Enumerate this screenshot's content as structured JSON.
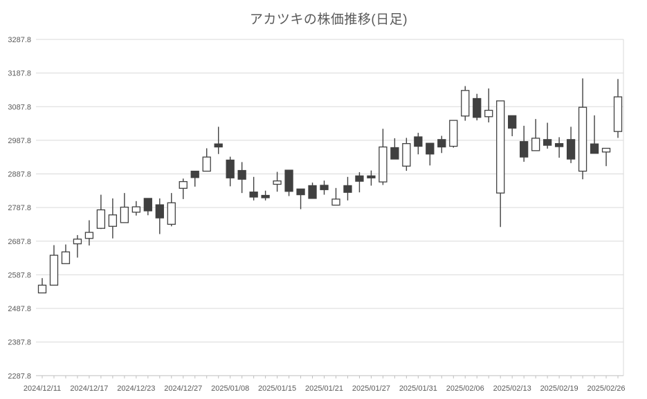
{
  "title": "アカツキの株価推移(日足)",
  "chart_data": {
    "type": "candlestick",
    "title": "アカツキの株価推移(日足)",
    "columns": [
      "date",
      "open",
      "high",
      "low",
      "close"
    ],
    "candles": [
      [
        "2024/12/11",
        2534,
        2578,
        2534,
        2557
      ],
      [
        "2024/12/12",
        2557,
        2676,
        2557,
        2646
      ],
      [
        "2024/12/13",
        2621,
        2678,
        2621,
        2656
      ],
      [
        "2024/12/16",
        2680,
        2706,
        2639,
        2694
      ],
      [
        "2024/12/17",
        2696,
        2750,
        2675,
        2714
      ],
      [
        "2024/12/18",
        2726,
        2826,
        2724,
        2781
      ],
      [
        "2024/12/19",
        2732,
        2815,
        2696,
        2766
      ],
      [
        "2024/12/20",
        2743,
        2831,
        2743,
        2789
      ],
      [
        "2024/12/23",
        2774,
        2807,
        2764,
        2790
      ],
      [
        "2024/12/24",
        2815,
        2815,
        2765,
        2778
      ],
      [
        "2024/12/25",
        2796,
        2815,
        2709,
        2757
      ],
      [
        "2024/12/26",
        2738,
        2831,
        2732,
        2802
      ],
      [
        "2024/12/27",
        2845,
        2874,
        2813,
        2865
      ],
      [
        "2024/12/30",
        2896,
        2896,
        2850,
        2877
      ],
      [
        "2025/01/06",
        2896,
        2964,
        2896,
        2938
      ],
      [
        "2025/01/07",
        2977,
        3028,
        2947,
        2968
      ],
      [
        "2025/01/08",
        2929,
        2939,
        2851,
        2876
      ],
      [
        "2025/01/09",
        2898,
        2923,
        2831,
        2872
      ],
      [
        "2025/01/10",
        2834,
        2879,
        2809,
        2819
      ],
      [
        "2025/01/14",
        2824,
        2838,
        2809,
        2817
      ],
      [
        "2025/01/15",
        2857,
        2894,
        2835,
        2867
      ],
      [
        "2025/01/16",
        2899,
        2899,
        2822,
        2836
      ],
      [
        "2025/01/17",
        2843,
        2843,
        2783,
        2826
      ],
      [
        "2025/01/20",
        2853,
        2862,
        2815,
        2815
      ],
      [
        "2025/01/21",
        2854,
        2868,
        2826,
        2841
      ],
      [
        "2025/01/22",
        2795,
        2846,
        2795,
        2813
      ],
      [
        "2025/01/23",
        2853,
        2879,
        2809,
        2833
      ],
      [
        "2025/01/24",
        2882,
        2893,
        2833,
        2866
      ],
      [
        "2025/01/27",
        2882,
        2898,
        2853,
        2876
      ],
      [
        "2025/01/28",
        2864,
        3022,
        2855,
        2968
      ],
      [
        "2025/01/29",
        2966,
        2994,
        2932,
        2932
      ],
      [
        "2025/01/30",
        2911,
        2995,
        2897,
        2978
      ],
      [
        "2025/01/31",
        2998,
        3010,
        2946,
        2970
      ],
      [
        "2025/02/03",
        2979,
        2979,
        2913,
        2947
      ],
      [
        "2025/02/04",
        2990,
        3001,
        2950,
        2968
      ],
      [
        "2025/02/05",
        2970,
        3047,
        2966,
        3047
      ],
      [
        "2025/02/06",
        3060,
        3149,
        3046,
        3136
      ],
      [
        "2025/02/07",
        3112,
        3126,
        3047,
        3056
      ],
      [
        "2025/02/10",
        3058,
        3142,
        3041,
        3077
      ],
      [
        "2025/02/12",
        2831,
        3105,
        2730,
        3105
      ],
      [
        "2025/02/13",
        3061,
        3061,
        3000,
        3024
      ],
      [
        "2025/02/14",
        2984,
        3031,
        2924,
        2938
      ],
      [
        "2025/02/17",
        2957,
        3051,
        2957,
        2994
      ],
      [
        "2025/02/18",
        2990,
        3040,
        2963,
        2973
      ],
      [
        "2025/02/19",
        2978,
        2997,
        2936,
        2969
      ],
      [
        "2025/02/20",
        2990,
        3028,
        2920,
        2932
      ],
      [
        "2025/02/21",
        2896,
        3172,
        2872,
        3086
      ],
      [
        "2025/02/25",
        2977,
        3062,
        2949,
        2949
      ],
      [
        "2025/02/26",
        2953,
        2964,
        2911,
        2964
      ],
      [
        "2025/02/27",
        3014,
        3170,
        2995,
        3117
      ]
    ],
    "y_axis": {
      "min": 2287.8,
      "max": 3287.8,
      "step": 100,
      "tick_labels": [
        "3287.8",
        "3187.8",
        "3087.8",
        "2987.8",
        "2887.8",
        "2787.8",
        "2687.8",
        "2587.8",
        "2487.8",
        "2387.8",
        "2287.8"
      ]
    },
    "x_axis": {
      "tick_label_interval": 4,
      "visible_tick_labels": [
        "2024/12/11",
        "2024/12/17",
        "2024/12/23",
        "2024/12/27",
        "2025/01/08",
        "2025/01/15",
        "2025/01/21",
        "2025/01/27",
        "2025/01/31",
        "2025/02/06",
        "2025/02/13",
        "2025/02/19",
        "2025/02/26"
      ]
    },
    "style": {
      "up_fill": "#ffffff",
      "down_fill": "#404040",
      "outline": "#404040",
      "gridline": "#d9d9d9",
      "axis_line": "#bfbfbf",
      "label_color": "#595959",
      "background": "#ffffff"
    },
    "grid": "horizontal",
    "legend": "none"
  }
}
